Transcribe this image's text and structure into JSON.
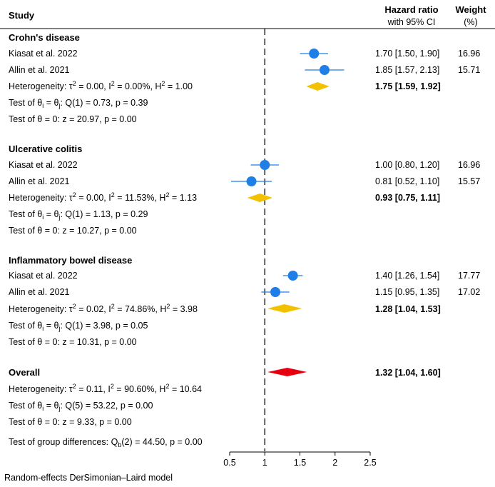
{
  "chart_data": {
    "type": "forest",
    "header": {
      "study": "Study",
      "hr_line1": "Hazard ratio",
      "hr_line2": "with 95% CI",
      "weight_line1": "Weight",
      "weight_line2": "(%)"
    },
    "null_value": 1,
    "xlim": [
      0.5,
      2.5
    ],
    "xticks": [
      0.5,
      1,
      1.5,
      2,
      2.5
    ],
    "xtick_labels": [
      "0.5",
      "1",
      "1.5",
      "2",
      "2.5"
    ],
    "colors": {
      "marker": "#1f7fe6",
      "ci": "#1f7fe6",
      "subgroup_diamond": "#f2c200",
      "overall_diamond": "#e6000f"
    },
    "groups": [
      {
        "name": "Crohn's disease",
        "studies": [
          {
            "label": "Kiasat et al. 2022",
            "hr": 1.7,
            "lo": 1.5,
            "hi": 1.9,
            "ci_text": "1.70 [1.50,  1.90]",
            "weight": "16.96"
          },
          {
            "label": "Allin et al. 2021",
            "hr": 1.85,
            "lo": 1.57,
            "hi": 2.13,
            "ci_text": "1.85 [1.57,  2.13]",
            "weight": "15.71"
          }
        ],
        "pooled": {
          "hr": 1.75,
          "lo": 1.59,
          "hi": 1.92,
          "ci_text": "1.75 [1.59,  1.92]"
        },
        "heterogeneity": {
          "prefix": "Heterogeneity: τ",
          "tau_sup": "2",
          "mid": " = 0.00, I",
          "i_sup": "2",
          "mid2": " = 0.00%, H",
          "h_sup": "2",
          "end": " = 1.00"
        },
        "test_homog": {
          "a": "Test of θ",
          "b": "i",
          "c": " = θ",
          "d": "j",
          "e": ": Q(1) = 0.73, p = 0.39"
        },
        "test_zero": "Test of θ = 0: z = 20.97, p = 0.00"
      },
      {
        "name": "Ulcerative colitis",
        "studies": [
          {
            "label": "Kiasat et al. 2022",
            "hr": 1.0,
            "lo": 0.8,
            "hi": 1.2,
            "ci_text": "1.00 [0.80,  1.20]",
            "weight": "16.96"
          },
          {
            "label": "Allin et al. 2021",
            "hr": 0.81,
            "lo": 0.52,
            "hi": 1.1,
            "ci_text": "0.81 [0.52,  1.10]",
            "weight": "15.57"
          }
        ],
        "pooled": {
          "hr": 0.93,
          "lo": 0.75,
          "hi": 1.11,
          "ci_text": "0.93 [0.75,  1.11]"
        },
        "heterogeneity": {
          "prefix": "Heterogeneity: τ",
          "tau_sup": "2",
          "mid": " = 0.00, I",
          "i_sup": "2",
          "mid2": " = 11.53%, H",
          "h_sup": "2",
          "end": " = 1.13"
        },
        "test_homog": {
          "a": "Test of θ",
          "b": "i",
          "c": " = θ",
          "d": "j",
          "e": ": Q(1) = 1.13, p = 0.29"
        },
        "test_zero": "Test of θ = 0: z = 10.27, p = 0.00"
      },
      {
        "name": "Inflammatory bowel disease",
        "studies": [
          {
            "label": "Kiasat et al. 2022",
            "hr": 1.4,
            "lo": 1.26,
            "hi": 1.54,
            "ci_text": "1.40 [1.26,  1.54]",
            "weight": "17.77"
          },
          {
            "label": "Allin et al. 2021",
            "hr": 1.15,
            "lo": 0.95,
            "hi": 1.35,
            "ci_text": "1.15 [0.95,  1.35]",
            "weight": "17.02"
          }
        ],
        "pooled": {
          "hr": 1.28,
          "lo": 1.04,
          "hi": 1.53,
          "ci_text": "1.28 [1.04,  1.53]"
        },
        "heterogeneity": {
          "prefix": "Heterogeneity: τ",
          "tau_sup": "2",
          "mid": " = 0.02, I",
          "i_sup": "2",
          "mid2": " = 74.86%, H",
          "h_sup": "2",
          "end": " = 3.98"
        },
        "test_homog": {
          "a": "Test of θ",
          "b": "i",
          "c": " = θ",
          "d": "j",
          "e": ": Q(1) = 3.98, p = 0.05"
        },
        "test_zero": "Test of θ = 0: z = 10.31, p = 0.00"
      }
    ],
    "overall": {
      "name": "Overall",
      "hr": 1.32,
      "lo": 1.04,
      "hi": 1.6,
      "ci_text": "1.32 [1.04,  1.60]",
      "heterogeneity": {
        "prefix": "Heterogeneity: τ",
        "tau_sup": "2",
        "mid": " = 0.11, I",
        "i_sup": "2",
        "mid2": " = 90.60%, H",
        "h_sup": "2",
        "end": " = 10.64"
      },
      "test_homog": {
        "a": "Test of θ",
        "b": "i",
        "c": " = θ",
        "d": "j",
        "e": ": Q(5) = 53.22, p = 0.00"
      },
      "test_zero": "Test of θ = 0: z = 9.33, p = 0.00"
    },
    "group_diff": {
      "a": "Test of group differences: Q",
      "b": "b",
      "c": "(2) = 44.50, p = 0.00"
    },
    "footnote": "Random-effects DerSimonian–Laird model"
  }
}
